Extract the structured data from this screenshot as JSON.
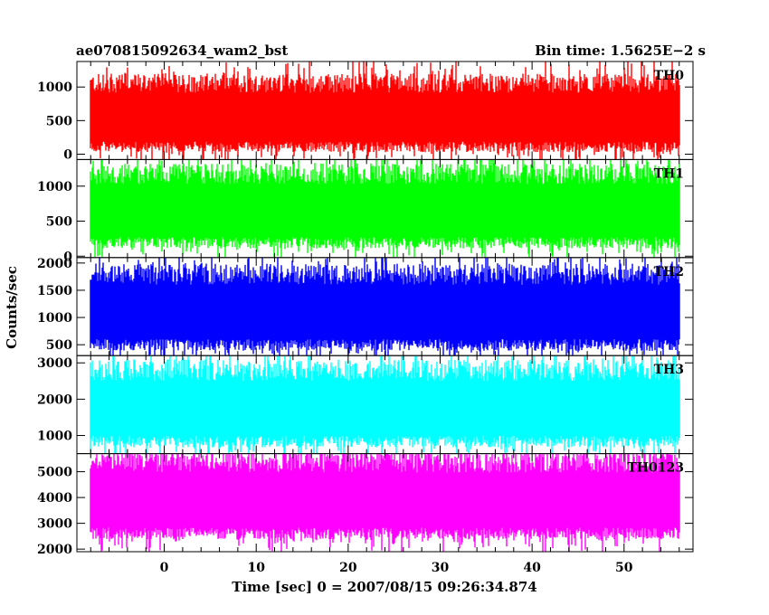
{
  "chart_data": {
    "type": "line",
    "title": "ae070815092634_wam2_bst",
    "subtitle": "Bin time: 1.5625E−2 s",
    "xlabel": "Time [sec] 0 = 2007/08/15 09:26:34.874",
    "ylabel": "Counts/sec",
    "xlim": [
      -9.5,
      57.5
    ],
    "x_ticks": [
      0,
      10,
      20,
      30,
      40,
      50
    ],
    "x_range_data": [
      -8,
      56
    ],
    "grid": false,
    "legend": "none",
    "panels": [
      {
        "name": "TH0",
        "color": "#ff0000",
        "ylim": [
          -80,
          1380
        ],
        "y_ticks": [
          0,
          500,
          1000
        ],
        "baseline": 550,
        "min": 80,
        "max": 1380
      },
      {
        "name": "TH1",
        "color": "#00ff00",
        "ylim": [
          -20,
          1380
        ],
        "y_ticks": [
          0,
          500,
          1000
        ],
        "baseline": 650,
        "min": 30,
        "max": 1380
      },
      {
        "name": "TH2",
        "color": "#0000ff",
        "ylim": [
          300,
          2100
        ],
        "y_ticks": [
          500,
          1000,
          1500,
          2000
        ],
        "baseline": 1100,
        "min": 320,
        "max": 2100
      },
      {
        "name": "TH3",
        "color": "#00ffff",
        "ylim": [
          500,
          3200
        ],
        "y_ticks": [
          1000,
          2000,
          3000
        ],
        "baseline": 1750,
        "min": 500,
        "max": 3200
      },
      {
        "name": "TH0123",
        "color": "#ff00ff",
        "ylim": [
          1900,
          5700
        ],
        "y_ticks": [
          2000,
          3000,
          4000,
          5000
        ],
        "baseline": 3900,
        "min": 1900,
        "max": 5700
      }
    ]
  }
}
